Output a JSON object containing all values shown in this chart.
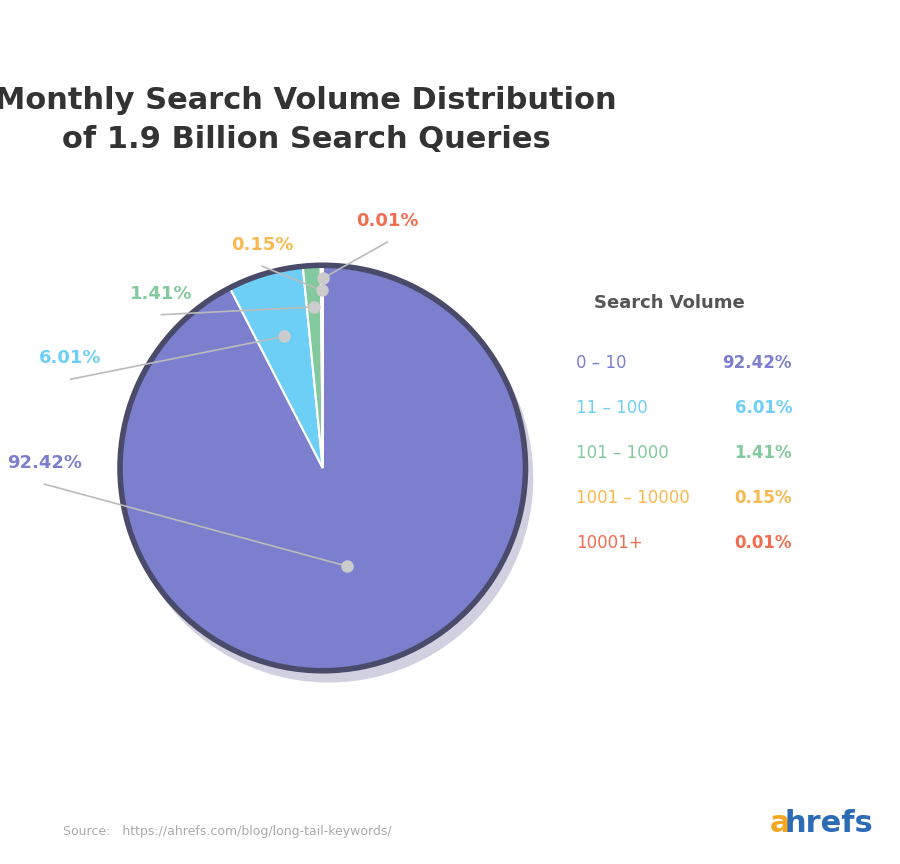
{
  "title": "Monthly Search Volume Distribution\nof 1.9 Billion Search Queries",
  "title_fontsize": 22,
  "title_fontweight": "bold",
  "slices": [
    92.42,
    6.01,
    1.41,
    0.15,
    0.01
  ],
  "labels": [
    "0 – 10",
    "11 – 100",
    "101 – 1000",
    "1001 – 10000",
    "10001+"
  ],
  "pct_labels": [
    "92.42%",
    "6.01%",
    "1.41%",
    "0.15%",
    "0.01%"
  ],
  "colors": [
    "#7b7fce",
    "#6dcff6",
    "#82ca9d",
    "#f9b84e",
    "#f26c4f"
  ],
  "shadow_color": "#d0d0e0",
  "edge_color": "#4a4a6a",
  "edge_linewidth": 4,
  "legend_title": "Search Volume",
  "legend_title_color": "#555555",
  "source_text": "Source:   https://ahrefs.com/blog/long-tail-keywords/",
  "source_color": "#aaaaaa",
  "ahrefs_a_color": "#f5a623",
  "ahrefs_hrefs_color": "#2d6bb5",
  "background_color": "#ffffff",
  "annotation_line_color": "#bbbbbb",
  "dot_color": "#cccccc",
  "title_color": "#333333"
}
